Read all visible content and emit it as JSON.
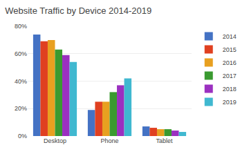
{
  "chart_data": {
    "type": "bar",
    "title": "Website Traffic by Device 2014-2019",
    "categories": [
      "Desktop",
      "Phone",
      "Tablet"
    ],
    "series": [
      {
        "name": "2014",
        "color": "#4472c4",
        "values": [
          74,
          19,
          7
        ]
      },
      {
        "name": "2015",
        "color": "#e04020",
        "values": [
          69,
          25,
          6
        ]
      },
      {
        "name": "2016",
        "color": "#e8a020",
        "values": [
          70,
          25,
          5
        ]
      },
      {
        "name": "2017",
        "color": "#3a9a30",
        "values": [
          63,
          32,
          5
        ]
      },
      {
        "name": "2018",
        "color": "#9b30c0",
        "values": [
          59,
          37,
          4
        ]
      },
      {
        "name": "2019",
        "color": "#40b8d0",
        "values": [
          54,
          42,
          3
        ]
      }
    ],
    "ylim": [
      0,
      80
    ],
    "yticks": [
      {
        "value": 0,
        "label": "0%"
      },
      {
        "value": 20,
        "label": "20%"
      },
      {
        "value": 40,
        "label": "40%"
      },
      {
        "value": 60,
        "label": "60%"
      },
      {
        "value": 80,
        "label": "80%"
      }
    ],
    "grid": true,
    "legend": "upper right"
  }
}
